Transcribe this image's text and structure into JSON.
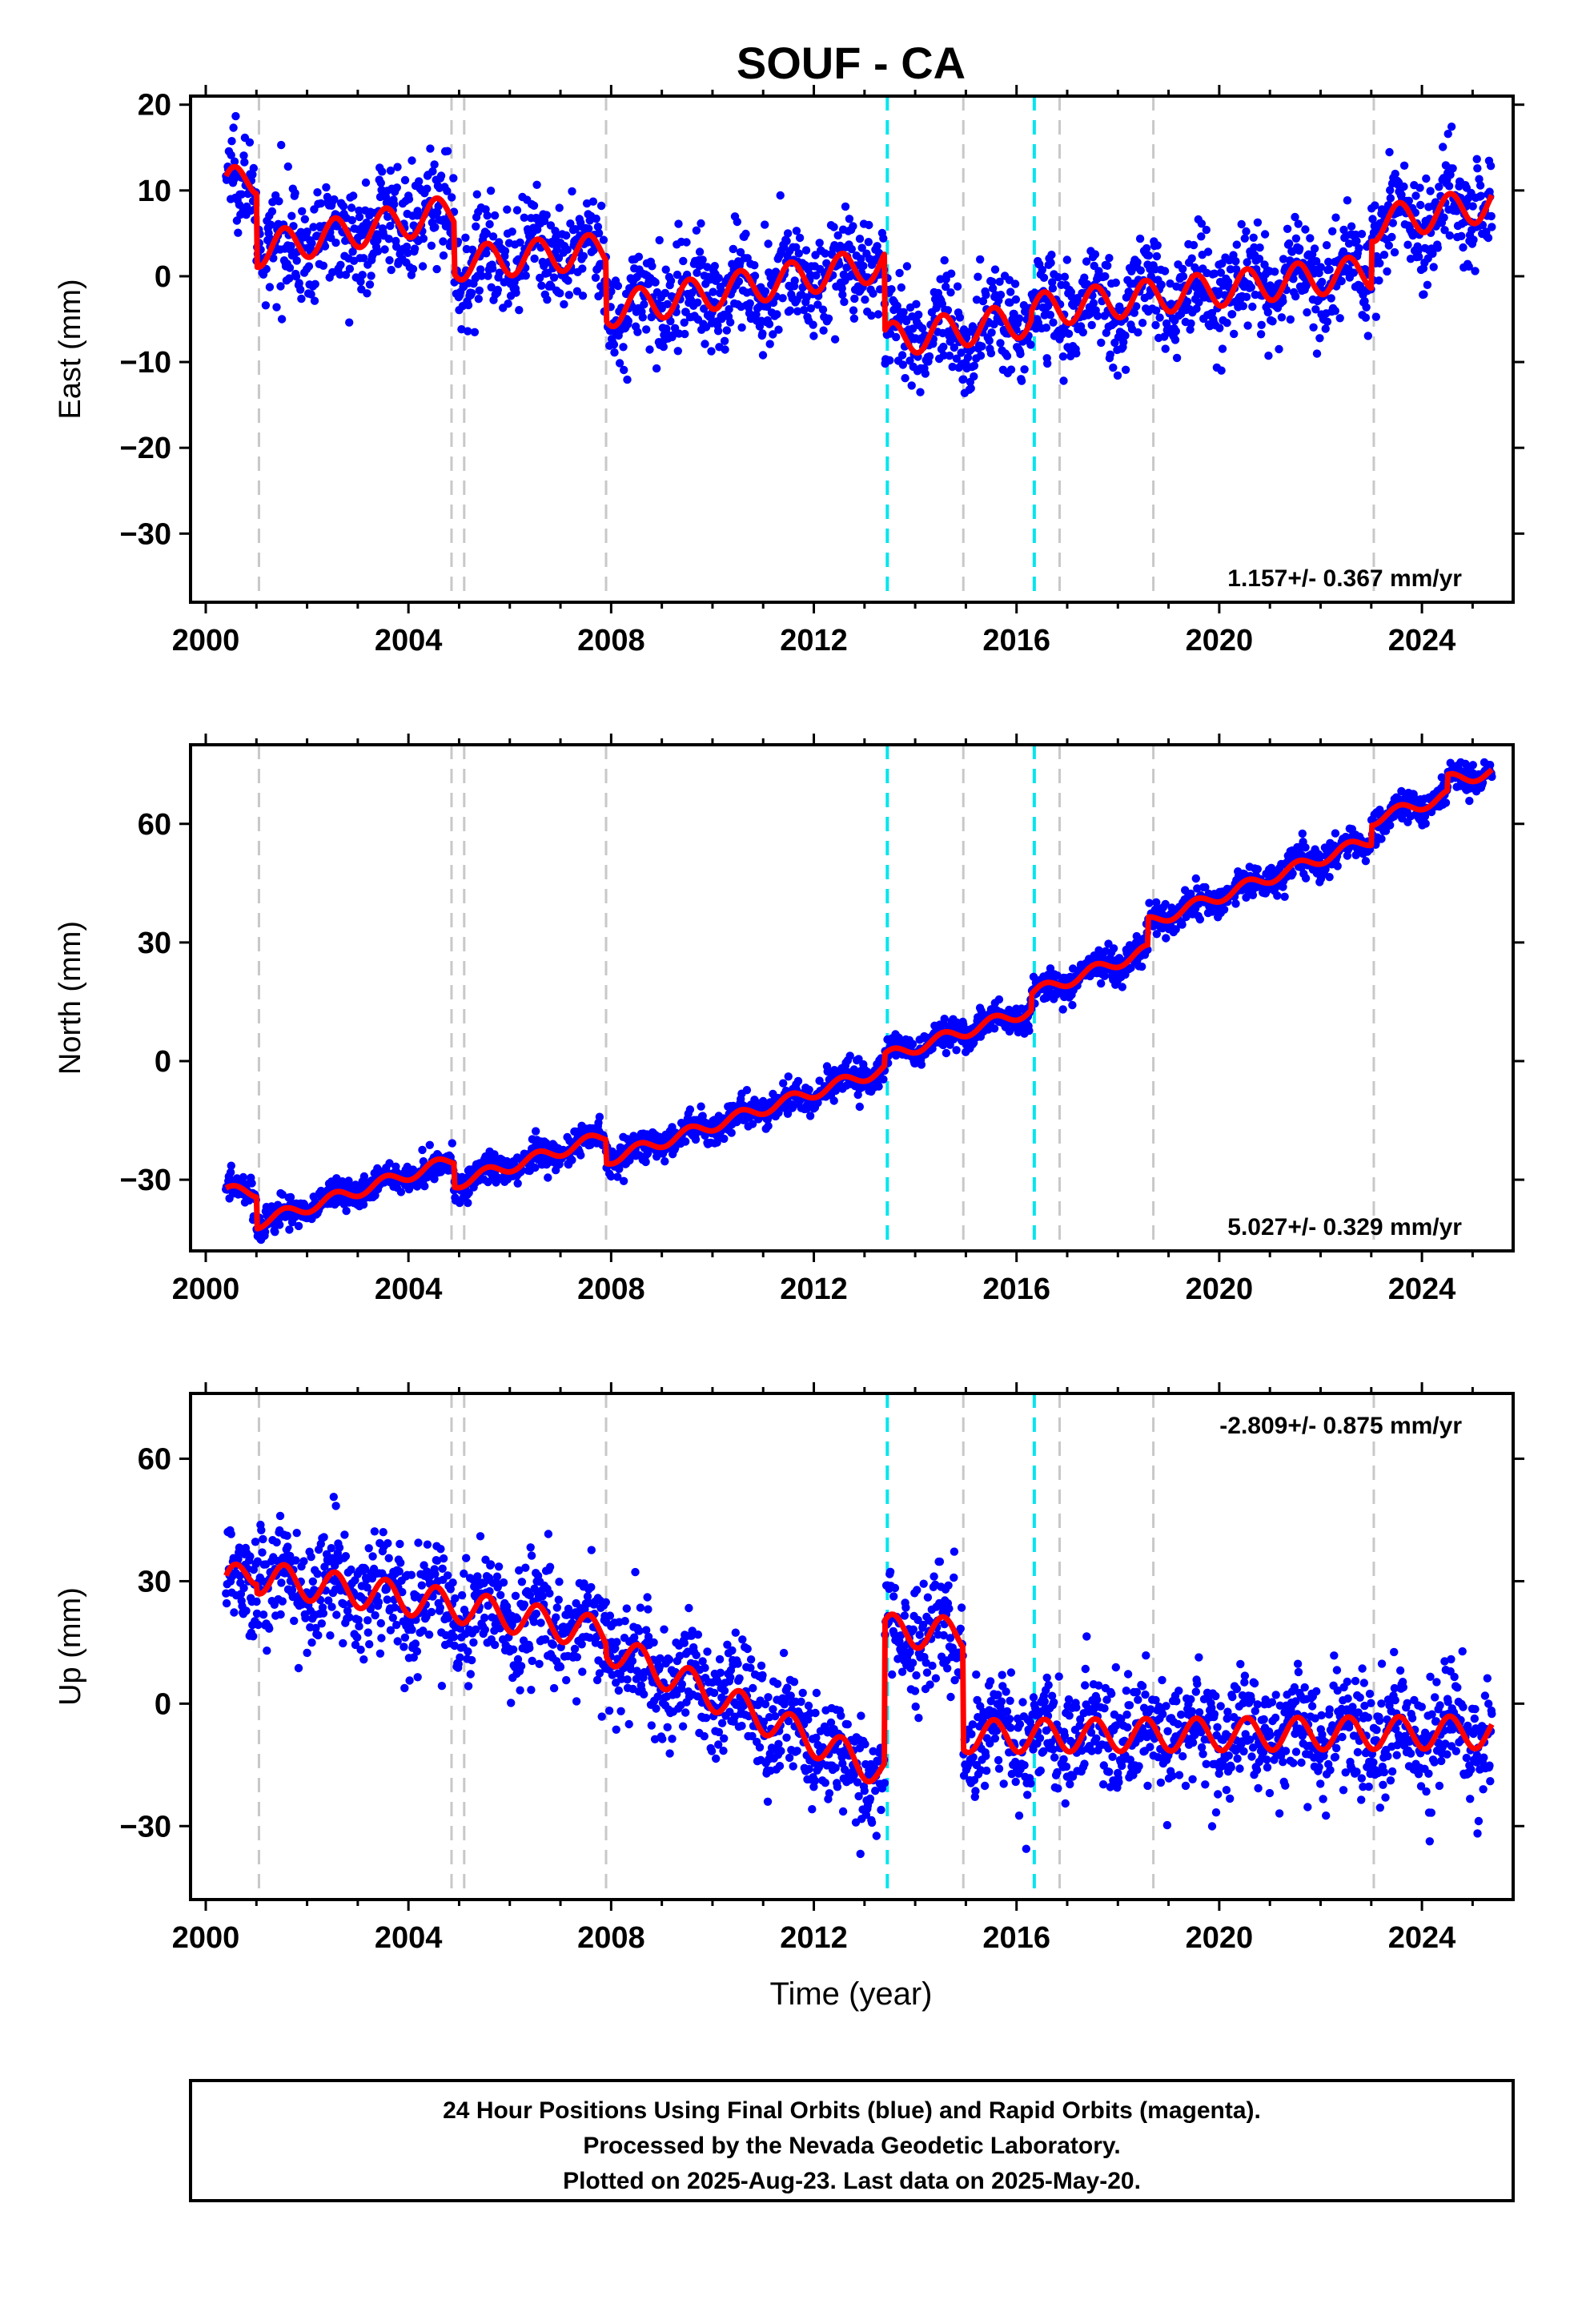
{
  "title": "SOUF - CA",
  "xlabel": "Time (year)",
  "caption": {
    "line1": "24 Hour Positions Using Final Orbits (blue) and Rapid Orbits (magenta).",
    "line2": "Processed by the Nevada Geodetic Laboratory.",
    "line3": "Plotted on 2025-Aug-23. Last data on 2025-May-20."
  },
  "colors": {
    "data_points": "#0000ff",
    "model_line": "#ff0000",
    "equipment_change": "#c8c8c8",
    "earthquake_event": "#00e5ee",
    "frame": "#000000"
  },
  "chart_data": [
    {
      "type": "scatter",
      "component": "east",
      "ylabel": "East (mm)",
      "xlim": [
        1999.7,
        2025.8
      ],
      "ylim": [
        -38,
        21
      ],
      "x_ticks": [
        2000,
        2004,
        2008,
        2012,
        2016,
        2020,
        2024
      ],
      "y_ticks": [
        20,
        10,
        0,
        -10,
        -20,
        -30
      ],
      "rate_text": "1.157+/- 0.367 mm/yr",
      "rate_mm_per_yr": 1.157,
      "rate_sigma": 0.367,
      "data_range": [
        2000.4,
        2025.38
      ],
      "seasonal_amplitude": 2.0,
      "scatter_sd": 3.0,
      "model": [
        {
          "start": 2000.4,
          "end": 2001.0,
          "y0": 10.5,
          "y1": 11.5
        },
        {
          "start": 2001.0,
          "end": 2004.9,
          "y0": 3.0,
          "y1": 7.5
        },
        {
          "start": 2004.9,
          "end": 2007.9,
          "y0": 1.5,
          "y1": 3.0
        },
        {
          "start": 2007.9,
          "end": 2013.4,
          "y0": -4.0,
          "y1": 1.5
        },
        {
          "start": 2013.4,
          "end": 2016.3,
          "y0": -7.5,
          "y1": -5.0
        },
        {
          "start": 2016.3,
          "end": 2023.0,
          "y0": -4.0,
          "y1": 0.5
        },
        {
          "start": 2023.0,
          "end": 2025.38,
          "y0": 6.0,
          "y1": 8.5
        }
      ]
    },
    {
      "type": "scatter",
      "component": "north",
      "ylabel": "North (mm)",
      "xlim": [
        1999.7,
        2025.8
      ],
      "ylim": [
        -48,
        80
      ],
      "x_ticks": [
        2000,
        2004,
        2008,
        2012,
        2016,
        2020,
        2024
      ],
      "y_ticks": [
        60,
        30,
        0,
        -30
      ],
      "rate_text": "5.027+/- 0.329 mm/yr",
      "rate_mm_per_yr": 5.027,
      "rate_sigma": 0.329,
      "data_range": [
        2000.4,
        2025.38
      ],
      "seasonal_amplitude": 1.5,
      "scatter_sd": 2.0,
      "model": [
        {
          "start": 2000.4,
          "end": 2001.0,
          "y0": -33.0,
          "y1": -33.0
        },
        {
          "start": 2001.0,
          "end": 2004.9,
          "y0": -41.0,
          "y1": -25.0
        },
        {
          "start": 2004.9,
          "end": 2007.9,
          "y0": -31.0,
          "y1": -19.0
        },
        {
          "start": 2007.9,
          "end": 2013.4,
          "y0": -25.0,
          "y1": -2.0
        },
        {
          "start": 2013.4,
          "end": 2016.3,
          "y0": 1.0,
          "y1": 13.0
        },
        {
          "start": 2016.3,
          "end": 2018.6,
          "y0": 17.0,
          "y1": 28.0
        },
        {
          "start": 2018.6,
          "end": 2023.0,
          "y0": 35.0,
          "y1": 56.0
        },
        {
          "start": 2023.0,
          "end": 2024.5,
          "y0": 61.0,
          "y1": 67.0
        },
        {
          "start": 2024.5,
          "end": 2025.38,
          "y0": 71.0,
          "y1": 73.0
        }
      ]
    },
    {
      "type": "scatter",
      "component": "up",
      "ylabel": "Up (mm)",
      "xlim": [
        1999.7,
        2025.8
      ],
      "ylim": [
        -48,
        76
      ],
      "x_ticks": [
        2000,
        2004,
        2008,
        2012,
        2016,
        2020,
        2024
      ],
      "y_ticks": [
        60,
        30,
        0,
        -30
      ],
      "rate_text": "-2.809+/- 0.875 mm/yr",
      "rate_mm_per_yr": -2.809,
      "rate_sigma": 0.875,
      "data_range": [
        2000.4,
        2025.38
      ],
      "seasonal_amplitude": 4.0,
      "scatter_sd": 7.0,
      "model": [
        {
          "start": 2000.4,
          "end": 2001.0,
          "y0": 29.0,
          "y1": 33.0
        },
        {
          "start": 2001.0,
          "end": 2004.9,
          "y0": 31.0,
          "y1": 24.0
        },
        {
          "start": 2004.9,
          "end": 2007.9,
          "y0": 24.0,
          "y1": 17.0
        },
        {
          "start": 2007.9,
          "end": 2013.4,
          "y0": 14.0,
          "y1": -17.0
        },
        {
          "start": 2013.4,
          "end": 2014.95,
          "y0": 18.0,
          "y1": 17.0
        },
        {
          "start": 2014.95,
          "end": 2025.38,
          "y0": -8.0,
          "y1": -7.0
        }
      ]
    }
  ],
  "event_lines": {
    "equipment_change_years": [
      2001.05,
      2004.85,
      2005.1,
      2007.9,
      2014.95,
      2016.85,
      2018.7,
      2023.05
    ],
    "earthquake_years": [
      2013.45,
      2016.35
    ]
  }
}
